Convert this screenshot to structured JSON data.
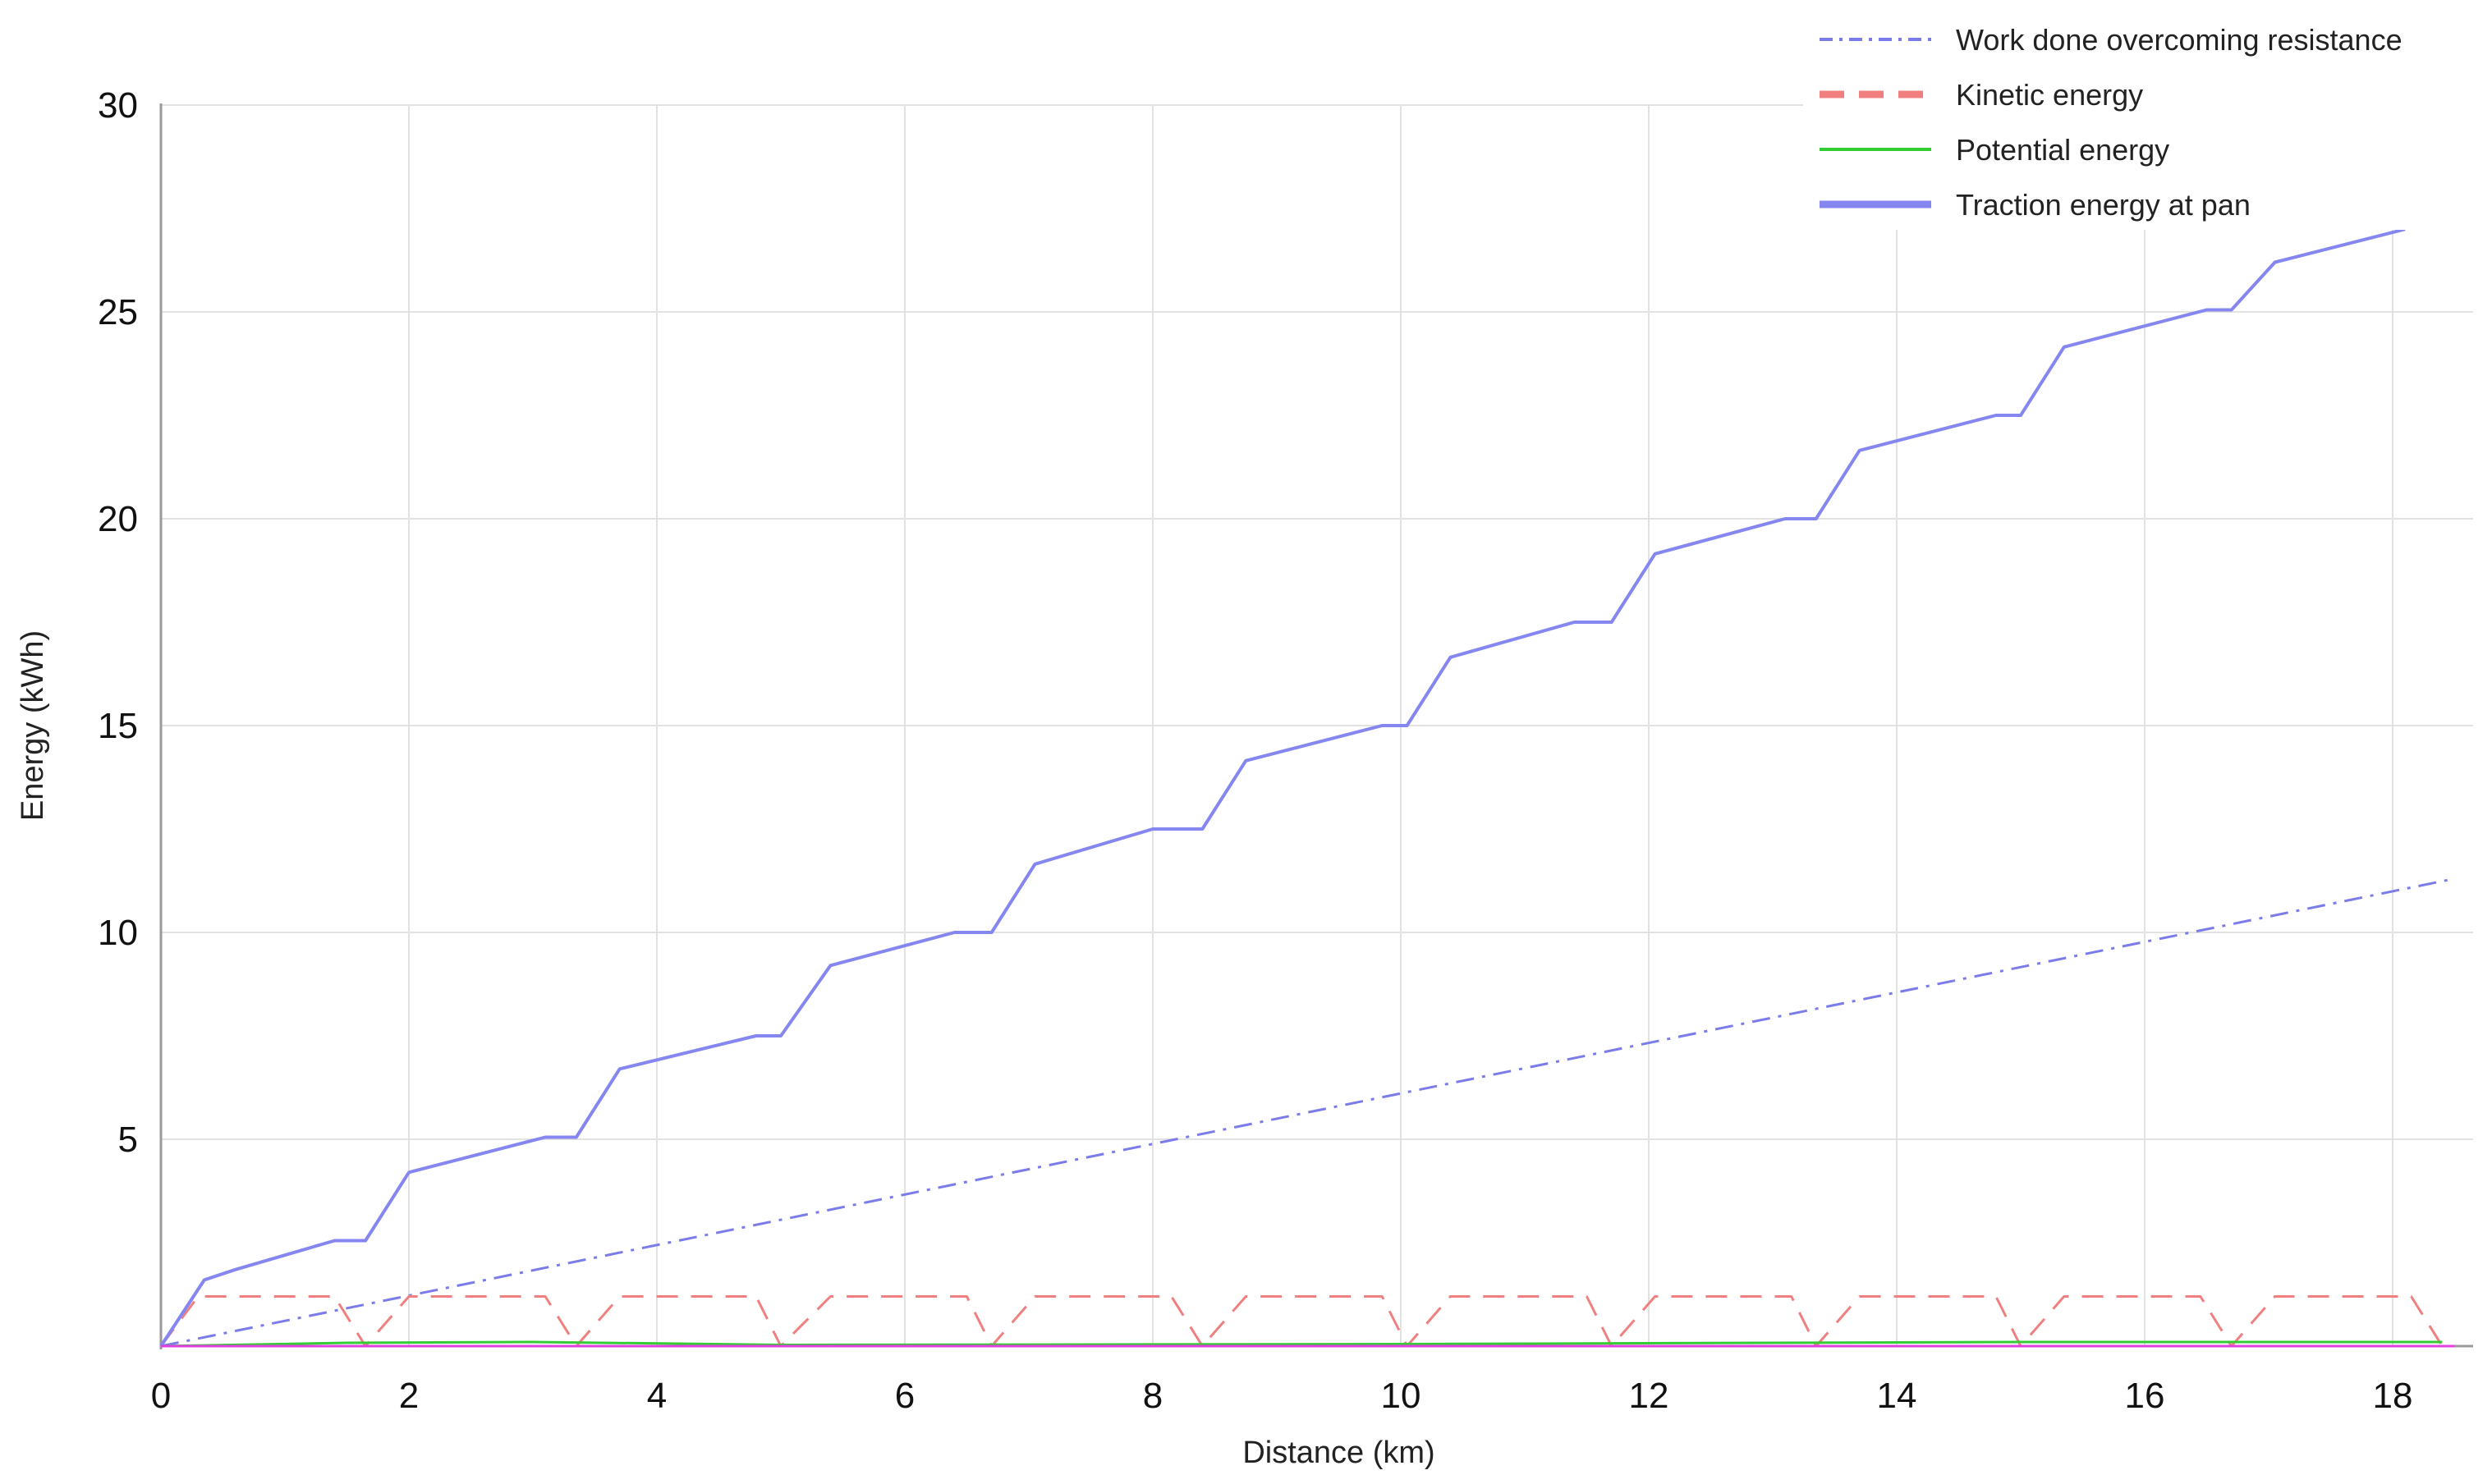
{
  "chart_data": {
    "type": "line",
    "xlabel": "Distance (km)",
    "ylabel": "Energy (kWh)",
    "xlim": [
      0,
      18.8
    ],
    "ylim": [
      0,
      30
    ],
    "x_ticks": [
      "0",
      "2",
      "4",
      "6",
      "8",
      "10",
      "12",
      "14",
      "16",
      "18"
    ],
    "y_ticks": [
      "5",
      "10",
      "15",
      "20",
      "25",
      "30"
    ],
    "grid": true,
    "legend_position": "top-right",
    "legend": [
      "Work done overcoming resistance",
      "Kinetic energy",
      "Potential energy",
      "Traction energy at pan"
    ],
    "series": [
      {
        "name": "Work done overcoming resistance",
        "color": "#7b7bea",
        "style": "dash-dot",
        "x": [
          0,
          18.5
        ],
        "values": [
          0,
          11.3
        ]
      },
      {
        "name": "Kinetic energy",
        "color": "#f08080",
        "style": "dashed",
        "x": [
          0,
          0.3,
          1.4,
          1.65,
          2.0,
          3.1,
          3.35,
          3.7,
          4.8,
          5.0,
          5.4,
          6.5,
          6.7,
          7.05,
          8.15,
          8.4,
          8.75,
          9.85,
          10.05,
          10.4,
          11.5,
          11.7,
          12.05,
          13.15,
          13.35,
          13.7,
          14.8,
          15.0,
          15.35,
          16.45,
          16.7,
          17.05,
          18.15,
          18.4
        ],
        "values": [
          0,
          1.2,
          1.2,
          0,
          1.2,
          1.2,
          0,
          1.2,
          1.2,
          0,
          1.2,
          1.2,
          0,
          1.2,
          1.2,
          0,
          1.2,
          1.2,
          0,
          1.2,
          1.2,
          0,
          1.2,
          1.2,
          0,
          1.2,
          1.2,
          0,
          1.2,
          1.2,
          0,
          1.2,
          1.2,
          0
        ]
      },
      {
        "name": "Potential energy",
        "color": "#33cc33",
        "style": "solid",
        "x": [
          0,
          1.5,
          3.0,
          5.0,
          10.0,
          15.0,
          18.4
        ],
        "values": [
          0,
          0.08,
          0.1,
          0.03,
          0.05,
          0.1,
          0.1
        ]
      },
      {
        "name": "Traction energy at pan",
        "color": "#8686f0",
        "style": "solid",
        "x": [
          0,
          0.35,
          0.6,
          1.4,
          1.65,
          2.0,
          3.1,
          3.35,
          3.7,
          4.8,
          5.0,
          5.4,
          6.4,
          6.7,
          7.05,
          8.0,
          8.4,
          8.75,
          9.85,
          10.05,
          10.4,
          11.4,
          11.7,
          12.05,
          13.1,
          13.35,
          13.7,
          14.8,
          15.0,
          15.35,
          16.5,
          16.7,
          17.05,
          18.1
        ],
        "values": [
          0,
          1.6,
          1.85,
          2.55,
          2.55,
          4.2,
          5.05,
          5.05,
          6.7,
          7.5,
          7.5,
          9.2,
          10.0,
          10.0,
          11.65,
          12.5,
          12.5,
          14.15,
          15.0,
          15.0,
          16.65,
          17.5,
          17.5,
          19.15,
          20.0,
          20.0,
          21.65,
          22.5,
          22.5,
          24.15,
          25.05,
          25.05,
          26.2,
          27.0
        ]
      },
      {
        "color": "#e040e0",
        "style": "solid",
        "x": [
          0,
          18.5
        ],
        "values": [
          0,
          0
        ]
      }
    ]
  }
}
